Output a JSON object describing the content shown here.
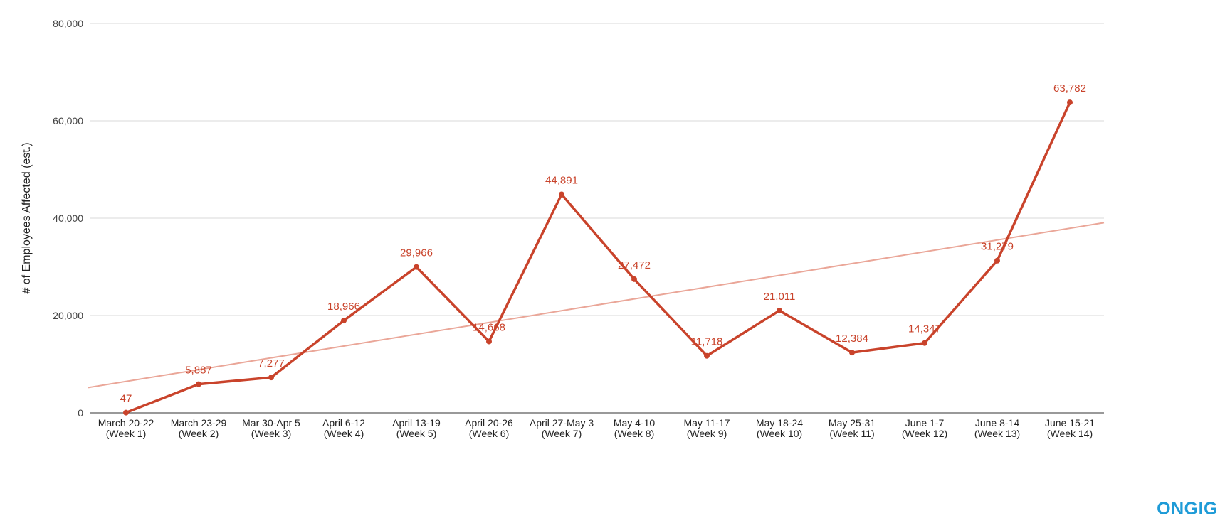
{
  "chart_data": {
    "type": "line",
    "ylabel": "# of Employees Affected (est.)",
    "xlabel": "",
    "ylim": [
      0,
      80000
    ],
    "yticks": [
      0,
      20000,
      40000,
      60000,
      80000
    ],
    "ytick_labels": [
      "0",
      "20,000",
      "40,000",
      "60,000",
      "80,000"
    ],
    "categories": [
      [
        "March 20-22",
        "(Week 1)"
      ],
      [
        "March 23-29",
        "(Week 2)"
      ],
      [
        "Mar 30-Apr 5",
        "(Week 3)"
      ],
      [
        "April 6-12",
        "(Week 4)"
      ],
      [
        "April 13-19",
        "(Week 5)"
      ],
      [
        "April 20-26",
        "(Week 6)"
      ],
      [
        "April 27-May 3",
        "(Week 7)"
      ],
      [
        "May 4-10",
        "(Week 8)"
      ],
      [
        "May 11-17",
        "(Week 9)"
      ],
      [
        "May 18-24",
        "(Week 10)"
      ],
      [
        "May 25-31",
        "(Week 11)"
      ],
      [
        "June 1-7",
        "(Week 12)"
      ],
      [
        "June 8-14",
        "(Week 13)"
      ],
      [
        "June 15-21",
        "(Week 14)"
      ]
    ],
    "series": [
      {
        "values": [
          47,
          5887,
          7277,
          18966,
          29966,
          14668,
          44891,
          27472,
          11718,
          21011,
          12384,
          14347,
          31279,
          63782
        ],
        "labels": [
          "47",
          "5,887",
          "7,277",
          "18,966",
          "29,966",
          "14,668",
          "44,891",
          "27,472",
          "11,718",
          "21,011",
          "12,384",
          "14,347",
          "31,279",
          "63,782"
        ],
        "color": "#c9432b"
      }
    ],
    "trendline": {
      "type": "linear",
      "start_value": 6464,
      "end_value": 37931,
      "color": "#eaa698"
    },
    "grid": true,
    "legend": "none"
  },
  "logo": {
    "text": "ONGIG",
    "color": "#1e9bd7"
  }
}
